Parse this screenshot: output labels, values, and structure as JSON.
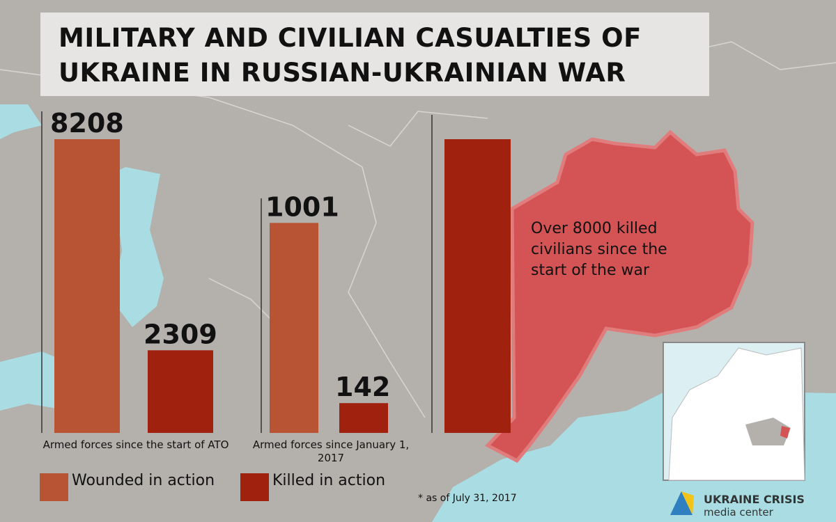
{
  "title": "MILITARY AND CIVILIAN CASUALTIES OF UKRAINE IN RUSSIAN-UKRAINIAN WAR",
  "footnote": "* as of July 31, 2017",
  "logo": {
    "name": "UKRAINE CRISIS",
    "subname": "media center"
  },
  "chart_data": [
    {
      "type": "bar",
      "categories": [
        "Armed forces since the start of ATO"
      ],
      "series": [
        {
          "name": "Wounded in action",
          "color": "#b85433",
          "values": [
            8208
          ]
        },
        {
          "name": "Killed in action",
          "color": "#a0220e",
          "values": [
            2309
          ]
        }
      ],
      "ylim": [
        0,
        8208
      ]
    },
    {
      "type": "bar",
      "categories": [
        "Armed forces since January 1, 2017"
      ],
      "series": [
        {
          "color": "#b85433",
          "values": [
            1001
          ]
        },
        {
          "color": "#a0220e",
          "values": [
            142
          ]
        }
      ],
      "ylim": [
        0,
        1400
      ]
    },
    {
      "type": "bar",
      "values": [
        8000
      ],
      "value_labels": [
        "Over 8000 killed civilians since the start of the war"
      ],
      "color": "#a0220e",
      "ylim": [
        0,
        8000
      ]
    }
  ]
}
